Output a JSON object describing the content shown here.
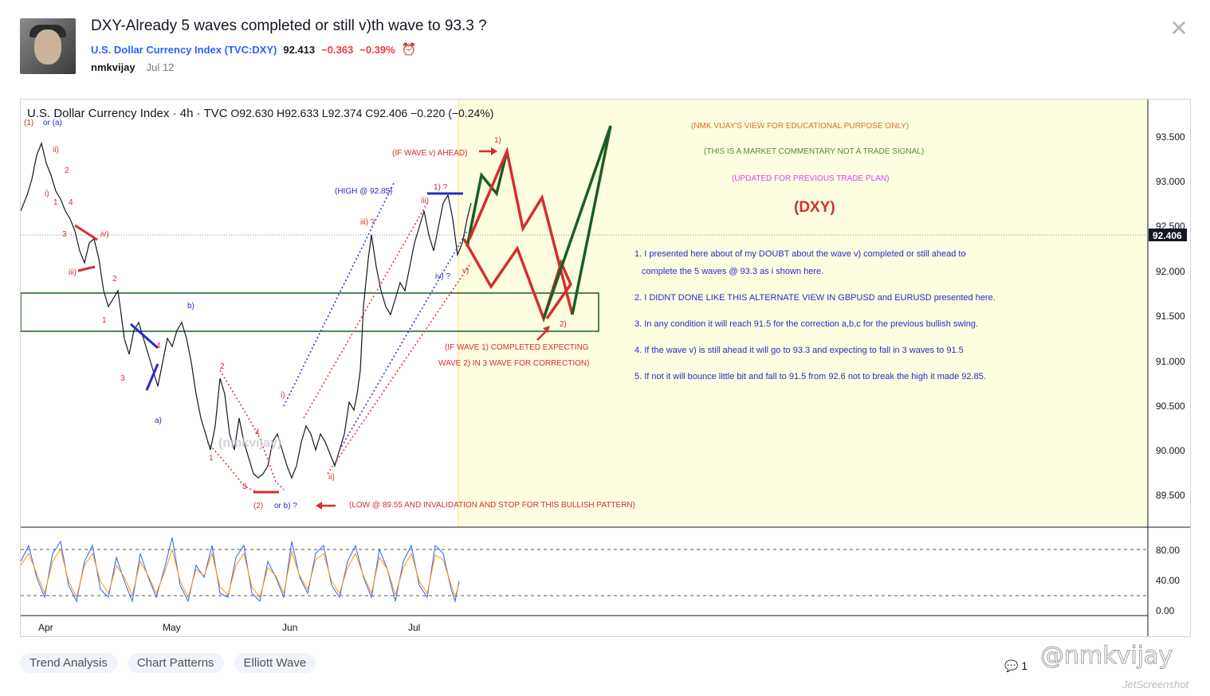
{
  "post": {
    "title": "DXY-Already 5 waves completed or still v)th wave to 93.3 ?",
    "symbol_name": "U.S. Dollar Currency Index",
    "symbol_code": "(TVC:DXY)",
    "price": "92.413",
    "change": "−0.363",
    "change_pct": "−0.39%",
    "author": "nmkvijay",
    "date": "Jul 12"
  },
  "chart": {
    "header_symbol": "U.S. Dollar Currency Index · 4h · TVC",
    "ohlc": "O92.630 H92.633 L92.374 C92.406 −0.220 (−0.24%)",
    "current_price": "92.406",
    "y_ticks": [
      "93.500",
      "93.000",
      "92.500",
      "92.000",
      "91.500",
      "91.000",
      "90.500",
      "90.000",
      "89.500"
    ],
    "osc_ticks": [
      "80.00",
      "40.00",
      "0.00"
    ],
    "x_ticks": [
      "Apr",
      "May",
      "Jun",
      "Jul"
    ],
    "notes_header": [
      "(NMK VIJAY'S VIEW FOR EDUCATIONAL PURPOSE ONLY)",
      "(THIS IS A MARKET COMMENTARY NOT A TRADE SIGNAL)",
      "(UPDATED FOR PREVIOUS TRADE PLAN)"
    ],
    "big_label": "(DXY)",
    "notes": [
      "1. I presented here about of my DOUBT about the wave v) completed or still ahead to",
      "complete the 5 waves @ 93.3 as i shown here.",
      "2. I DIDNT DONE LIKE THIS ALTERNATE VIEW IN GBPUSD and EURUSD presented here.",
      "3. In any condition it will reach 91.5 for the correction a,b,c for the previous bullish swing.",
      "4. If the wave v) is still ahead it will go to 93.3 and expecting to fall in 3 waves to 91.5",
      "5. If not it will bounce little bit and fall to 91.5 from 92.6 not to break the high it made 92.85."
    ],
    "annotations": {
      "if_wave_v_ahead": "(IF WAVE v) AHEAD)",
      "high": "(HIGH @ 92.85)",
      "if_wave1_completed_1": "(IF WAVE 1) COMPLETED EXPECTING",
      "if_wave1_completed_2": "WAVE 2) IN 3 WAVE  FOR CORRECTION)",
      "low": "(LOW @ 89.55 AND INVALIDATION AND STOP FOR THIS BULLISH PATTERN)",
      "wave_1": "1)",
      "wave_2": "2)",
      "wave_1q": "1) ?",
      "wave_iv_q": "iv) ?",
      "wave_v": "v)",
      "wave_iii_q": "iii) ?",
      "wave_iii": "iii)",
      "wave_i": "i)",
      "wave_ii": "ii)",
      "b": "b)",
      "a": "a)",
      "wave_2_or_b": "(2)",
      "or_b": "or b) ?",
      "wave_1_or_a": "(1)",
      "or_a": "or (a)",
      "watermark_chart": "(nmkvijay)"
    }
  },
  "tags": [
    "Trend Analysis",
    "Chart Patterns",
    "Elliott Wave"
  ],
  "footer": {
    "comments_count": "1",
    "watermark": "@nmkvijay",
    "watermark2": "JetScreenshot"
  },
  "colors": {
    "bull": "#1b5e20",
    "bear": "#d32f2f",
    "blue": "#2a2ad0",
    "highlight": "#fdfde0"
  }
}
